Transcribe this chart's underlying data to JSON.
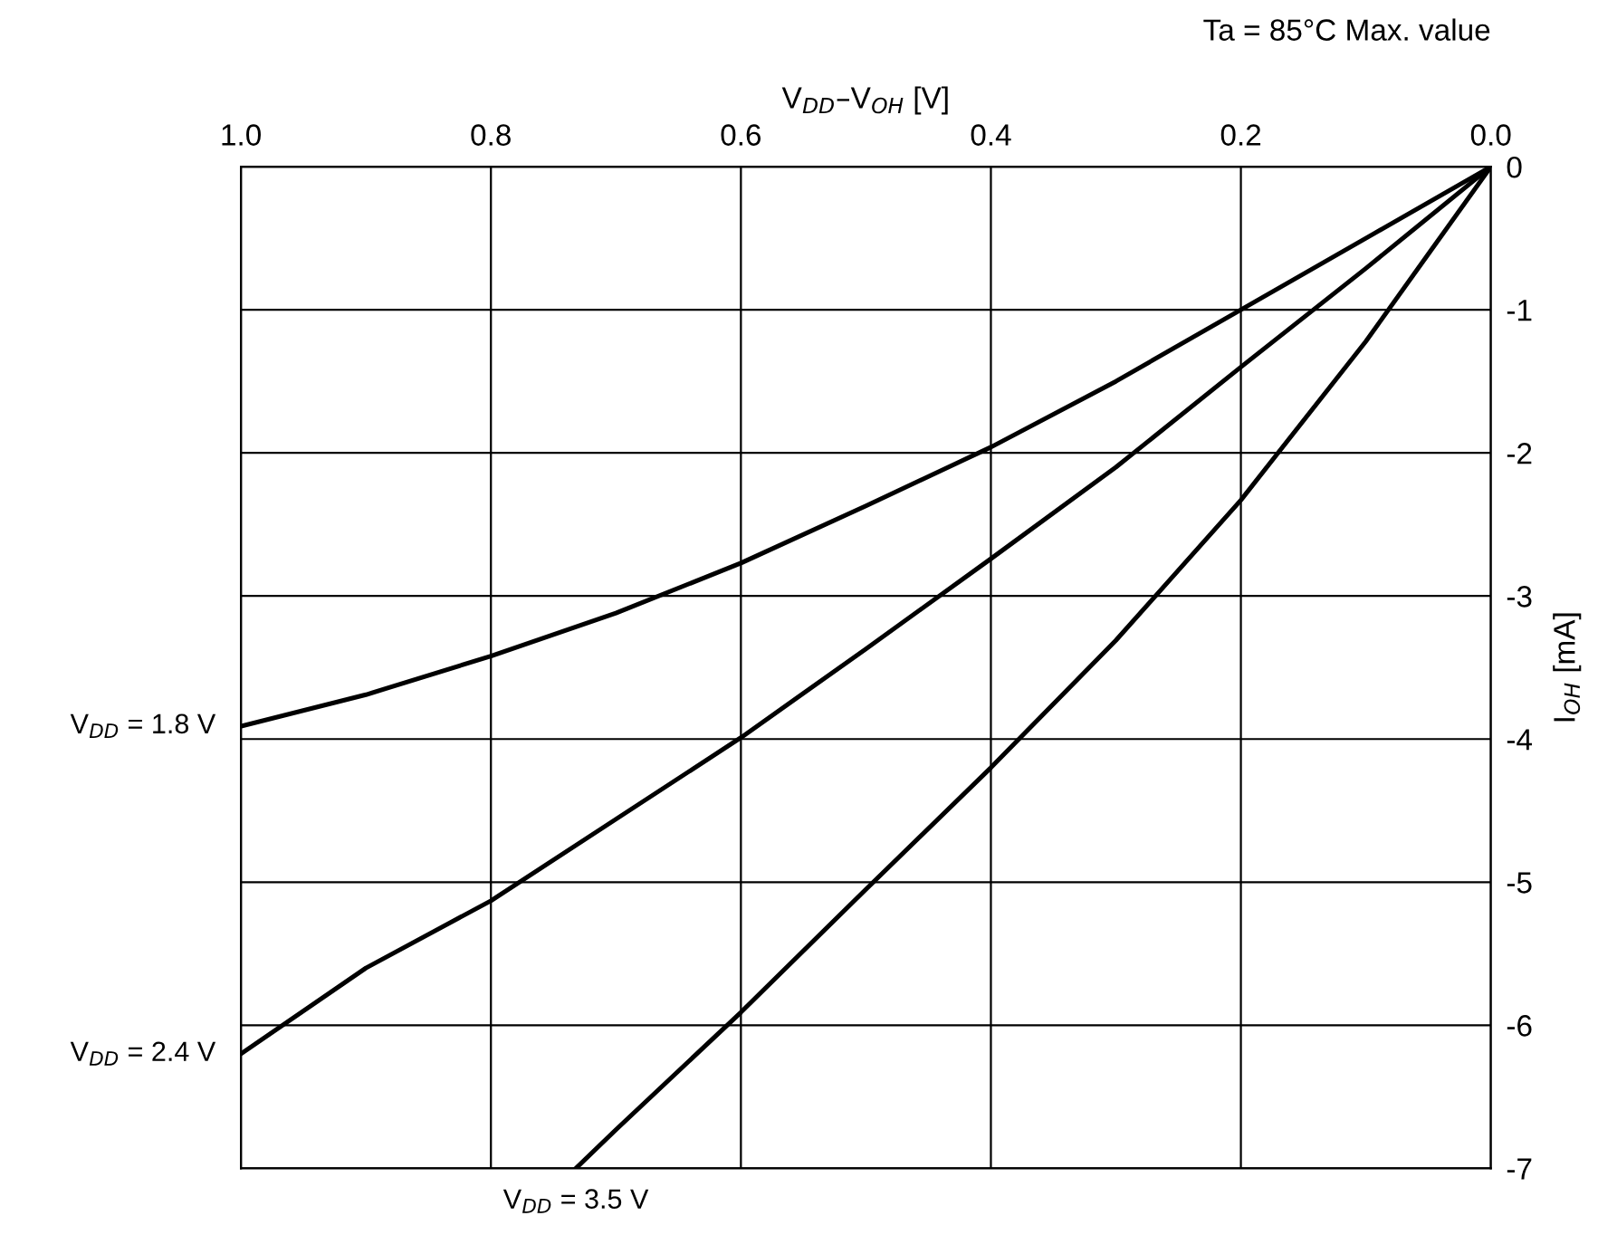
{
  "chart_data": {
    "type": "line",
    "title": "Ta = 85°C Max. value",
    "xlabel": "V$_{DD}$–V$_{OH}$ [V]",
    "ylabel": "I$_{OH}$ [mA]",
    "xlim": [
      1.0,
      0.0
    ],
    "xticks": [
      {
        "value": 1,
        "label": "1.0"
      },
      0.8,
      0.6,
      0.4,
      0.2,
      {
        "value": 0,
        "label": "0.0"
      }
    ],
    "ylim": [
      -7,
      0
    ],
    "yticks": [
      0,
      -1,
      -2,
      -3,
      -4,
      -5,
      -6,
      -7
    ],
    "grid": true,
    "line_style": "solid",
    "series": [
      {
        "name": "V$_{DD}$ = 1.8 V",
        "color": "#000000",
        "x": [
          1.0,
          0.9,
          0.8,
          0.7,
          0.6,
          0.5,
          0.4,
          0.3,
          0.2,
          0.1,
          0.0
        ],
        "values": [
          -3.91,
          -3.69,
          -3.42,
          -3.12,
          -2.77,
          -2.37,
          -1.96,
          -1.5,
          -1.0,
          -0.5,
          0
        ]
      },
      {
        "name": "V$_{DD}$ = 2.4 V",
        "color": "#000000",
        "x": [
          1.0,
          0.9,
          0.8,
          0.7,
          0.6,
          0.5,
          0.4,
          0.3,
          0.2,
          0.1,
          0.0
        ],
        "values": [
          -6.2,
          -5.6,
          -5.13,
          -4.56,
          -3.99,
          -3.37,
          -2.74,
          -2.1,
          -1.4,
          -0.71,
          0
        ]
      },
      {
        "name": "V$_{DD}$ = 3.5 V",
        "color": "#000000",
        "x": [
          0.732,
          0.7,
          0.6,
          0.5,
          0.4,
          0.3,
          0.2,
          0.1,
          0.05,
          0.0
        ],
        "values": [
          -7,
          -6.73,
          -5.91,
          -5.05,
          -4.2,
          -3.31,
          -2.33,
          -1.22,
          -0.61,
          0
        ]
      }
    ]
  }
}
